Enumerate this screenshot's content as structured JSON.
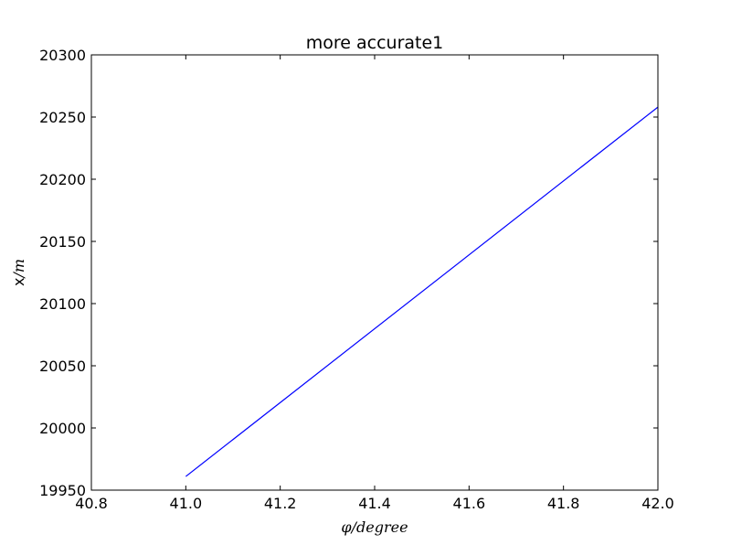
{
  "chart_data": {
    "type": "line",
    "title": "more accurate1",
    "xlabel": "φ/degree",
    "ylabel": {
      "prefix": "x",
      "suffix": "/m"
    },
    "xlim": [
      40.8,
      42.0
    ],
    "ylim": [
      19950,
      20300
    ],
    "xticks": [
      "40.8",
      "41.0",
      "41.2",
      "41.4",
      "41.6",
      "41.8",
      "42.0"
    ],
    "yticks": [
      "19950",
      "20000",
      "20050",
      "20100",
      "20150",
      "20200",
      "20250",
      "20300"
    ],
    "grid": false,
    "series": [
      {
        "name": "x",
        "color": "#0000ff",
        "x": [
          41.0,
          42.0
        ],
        "y": [
          19961,
          20258
        ]
      }
    ]
  }
}
